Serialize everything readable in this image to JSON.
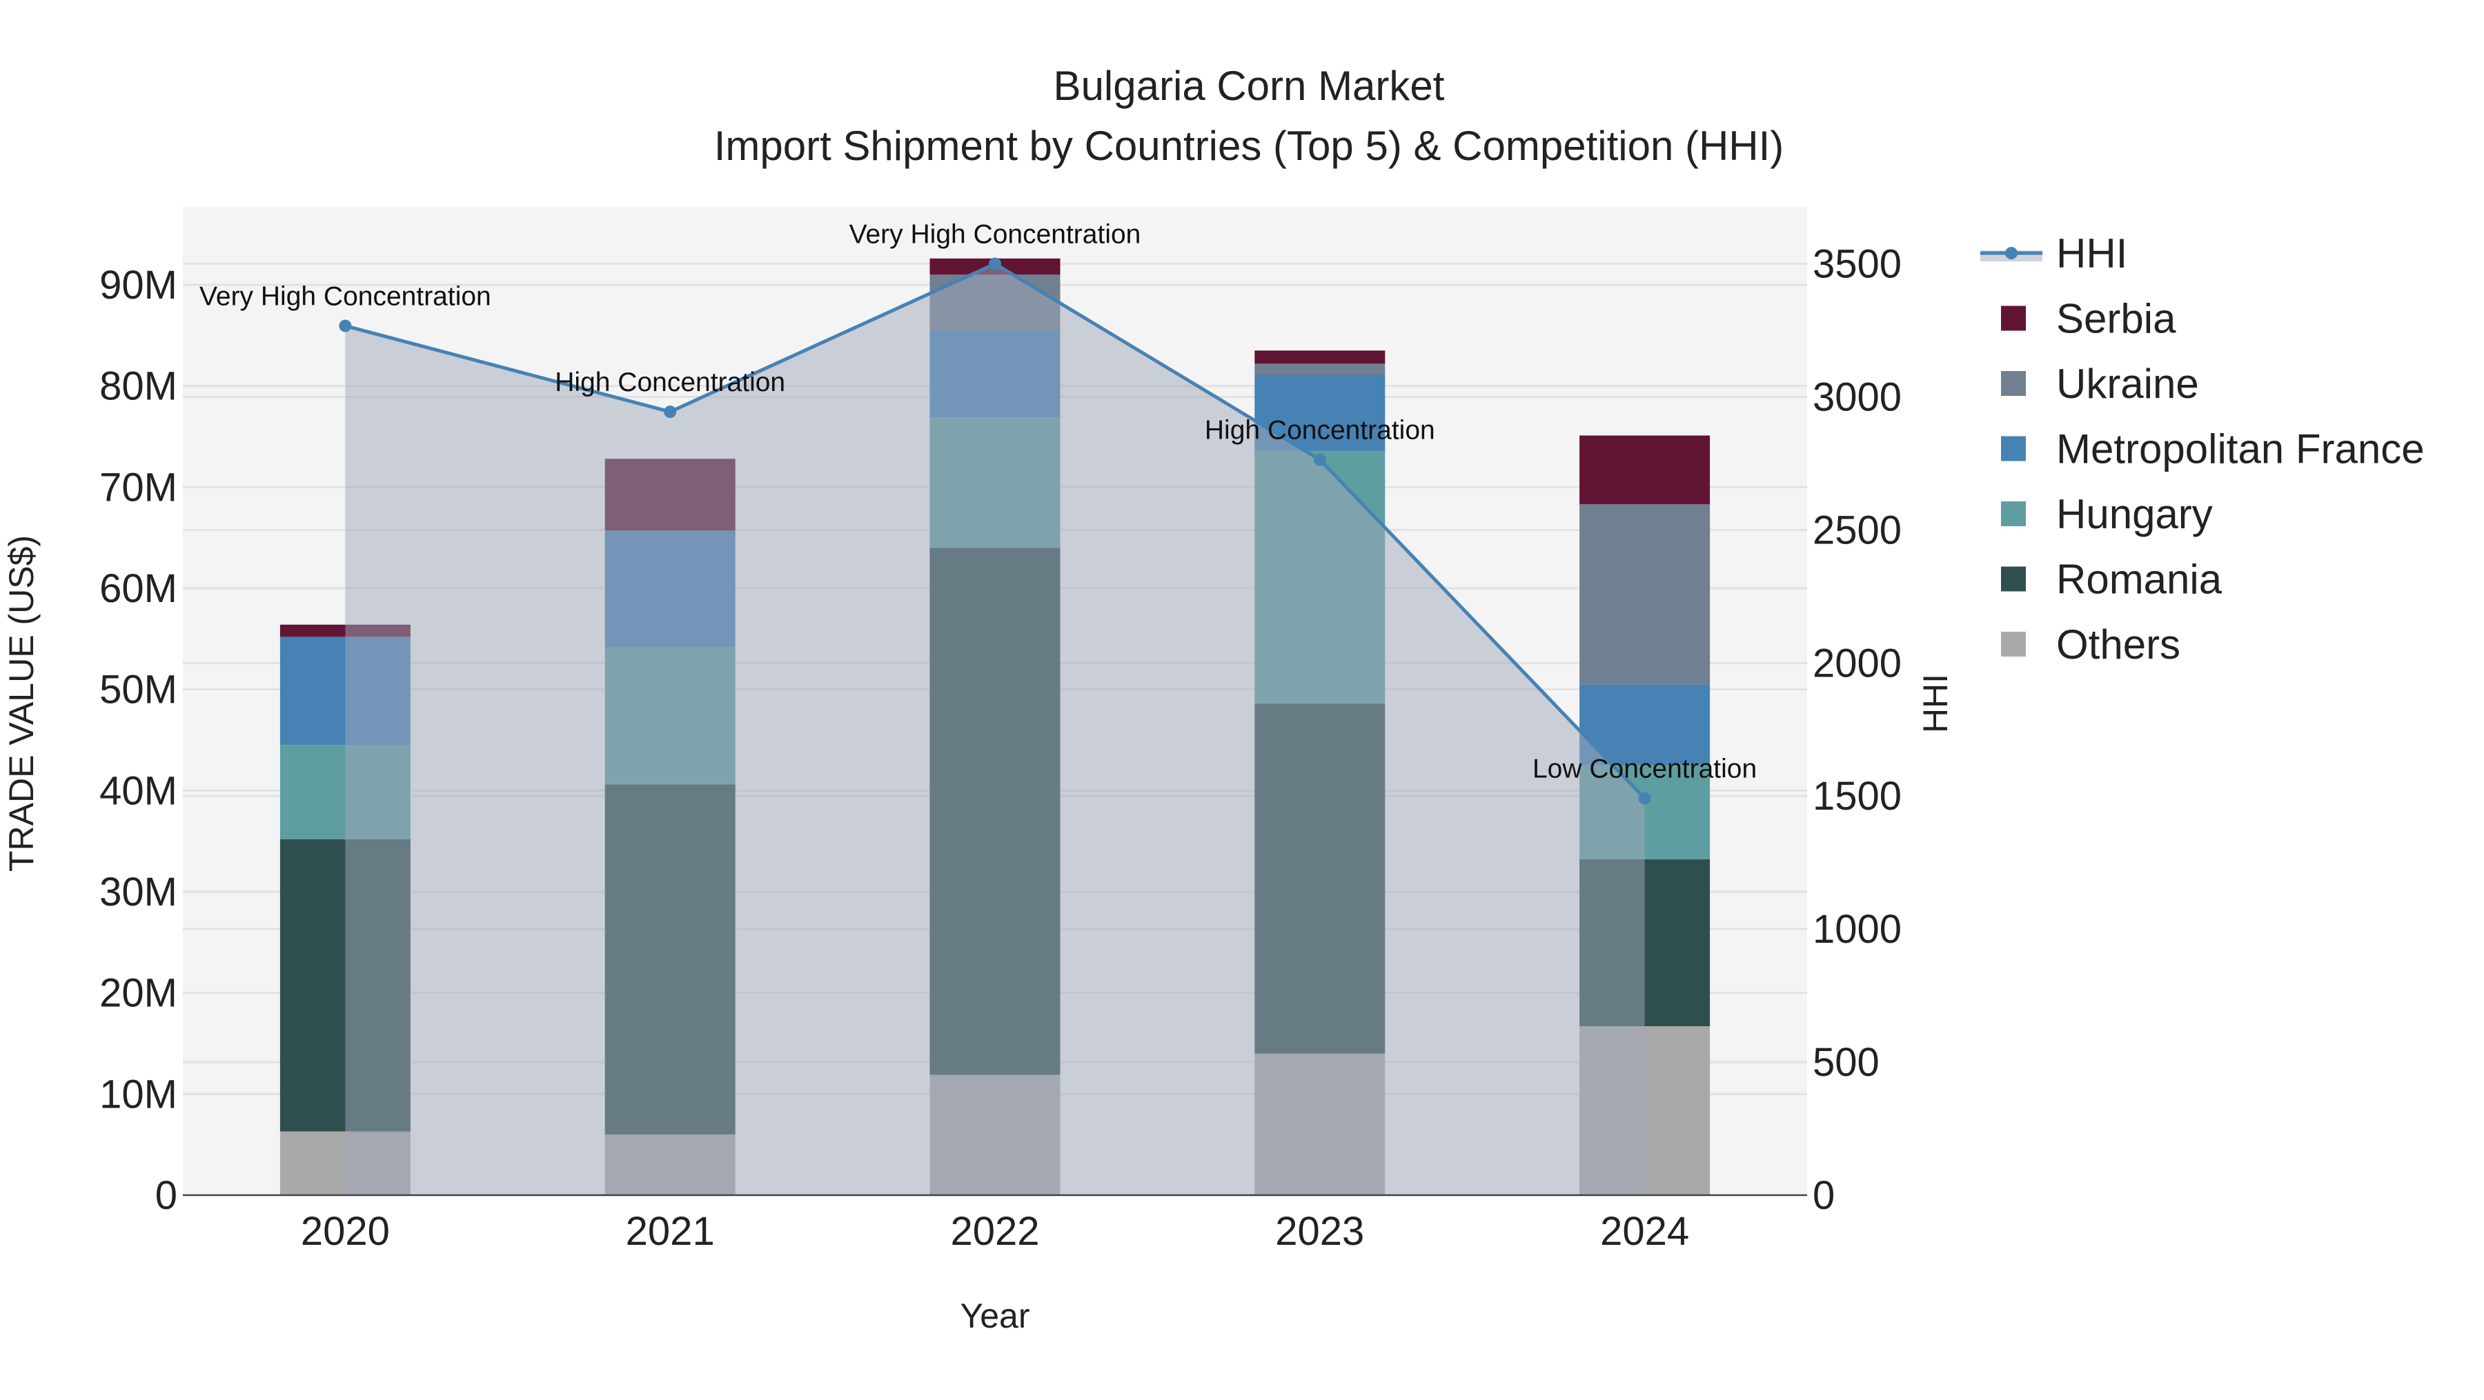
{
  "chart_data": {
    "type": "bar",
    "title": "Bulgaria Corn Market",
    "subtitle": "Import Shipment by Countries (Top 5) & Competition (HHI)",
    "xlabel": "Year",
    "ylabel": "TRADE VALUE (US$)",
    "y2label": "HHI",
    "categories": [
      "2020",
      "2021",
      "2022",
      "2023",
      "2024"
    ],
    "ylim": [
      0,
      97700000
    ],
    "y2lim": [
      0,
      3714
    ],
    "yticks": [
      0,
      10000000,
      20000000,
      30000000,
      40000000,
      50000000,
      60000000,
      70000000,
      80000000,
      90000000
    ],
    "ytick_labels": [
      "0",
      "10M",
      "20M",
      "30M",
      "40M",
      "50M",
      "60M",
      "70M",
      "80M",
      "90M"
    ],
    "y2ticks": [
      0,
      500,
      1000,
      1500,
      2000,
      2500,
      3000,
      3500
    ],
    "y2tick_labels": [
      "0",
      "500",
      "1000",
      "1500",
      "2000",
      "2500",
      "3000",
      "3500"
    ],
    "grid": true,
    "barmode": "stack",
    "legend_position": "right",
    "series": [
      {
        "name": "Others",
        "color": "#a9a9a9",
        "values": [
          6300000,
          6000000,
          11900000,
          14000000,
          16700000
        ]
      },
      {
        "name": "Romania",
        "color": "#2f4f4f",
        "values": [
          28900000,
          34600000,
          52100000,
          34600000,
          16500000
        ]
      },
      {
        "name": "Hungary",
        "color": "#5f9ea0",
        "values": [
          9300000,
          13600000,
          12900000,
          25000000,
          9300000
        ]
      },
      {
        "name": "Metropolitan France",
        "color": "#4682b4",
        "values": [
          10700000,
          11500000,
          8600000,
          7500000,
          8000000
        ]
      },
      {
        "name": "Ukraine",
        "color": "#708090",
        "values": [
          0,
          0,
          5500000,
          1100000,
          17800000
        ]
      },
      {
        "name": "Serbia",
        "color": "#611434",
        "values": [
          1200000,
          7100000,
          1600000,
          1300000,
          6800000
        ]
      }
    ],
    "line": {
      "name": "HHI",
      "color": "#4682b4",
      "values": [
        3267,
        2944,
        3500,
        2764,
        1491
      ],
      "annotations": [
        "Very High Concentration",
        "High Concentration",
        "Very High Concentration",
        "High Concentration",
        "Low Concentration"
      ]
    },
    "legend_order": [
      "HHI",
      "Serbia",
      "Ukraine",
      "Metropolitan France",
      "Hungary",
      "Romania",
      "Others"
    ]
  }
}
